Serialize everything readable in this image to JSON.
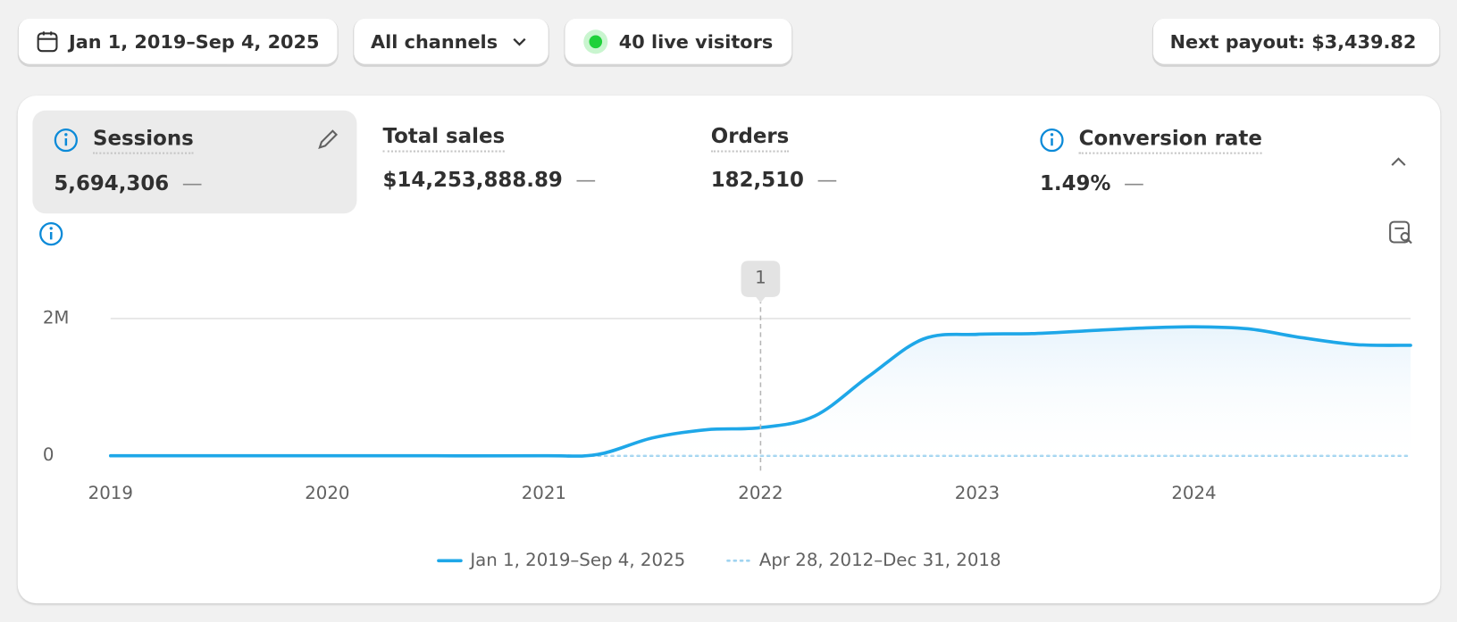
{
  "toolbar": {
    "date_range": "Jan 1, 2019–Sep 4, 2025",
    "channels": "All channels",
    "live_visitors": "40 live visitors",
    "payout": "Next payout: $3,439.82"
  },
  "metrics": [
    {
      "title": "Sessions",
      "value": "5,694,306",
      "change": "—"
    },
    {
      "title": "Total sales",
      "value": "$14,253,888.89",
      "change": "—"
    },
    {
      "title": "Orders",
      "value": "182,510",
      "change": "—"
    },
    {
      "title": "Conversion rate",
      "value": "1.49%",
      "change": "—"
    }
  ],
  "chart_data": {
    "type": "line",
    "x": [
      2019,
      2019.5,
      2020,
      2020.5,
      2021,
      2021.25,
      2021.5,
      2021.75,
      2022,
      2022.25,
      2022.5,
      2022.75,
      2023,
      2023.25,
      2023.5,
      2023.75,
      2024,
      2024.25,
      2024.5,
      2024.75,
      2025
    ],
    "series": [
      {
        "name": "Jan 1, 2019–Sep 4, 2025",
        "color": "#1ea7e8",
        "style": "solid",
        "values": [
          0,
          0,
          0,
          0,
          0,
          20000,
          260000,
          380000,
          410000,
          580000,
          1160000,
          1700000,
          1770000,
          1780000,
          1820000,
          1860000,
          1880000,
          1850000,
          1720000,
          1620000,
          1610000
        ]
      },
      {
        "name": "Apr 28, 2012–Dec 31, 2018",
        "color": "#9fd3f0",
        "style": "dotted",
        "values": [
          0,
          0,
          0,
          0,
          0,
          0,
          0,
          0,
          0,
          0,
          0,
          0,
          0,
          0,
          0,
          0,
          0,
          0,
          0,
          0,
          0
        ]
      }
    ],
    "xlim": [
      2019,
      2025
    ],
    "xticks": [
      2019,
      2020,
      2021,
      2022,
      2023,
      2024
    ],
    "ylim": [
      0,
      2800000
    ],
    "yticks": [
      0,
      {
        "value": 2000000,
        "label": "2M"
      }
    ],
    "grid": true,
    "annotations": [
      {
        "x": 2022,
        "text": "1"
      }
    ]
  }
}
